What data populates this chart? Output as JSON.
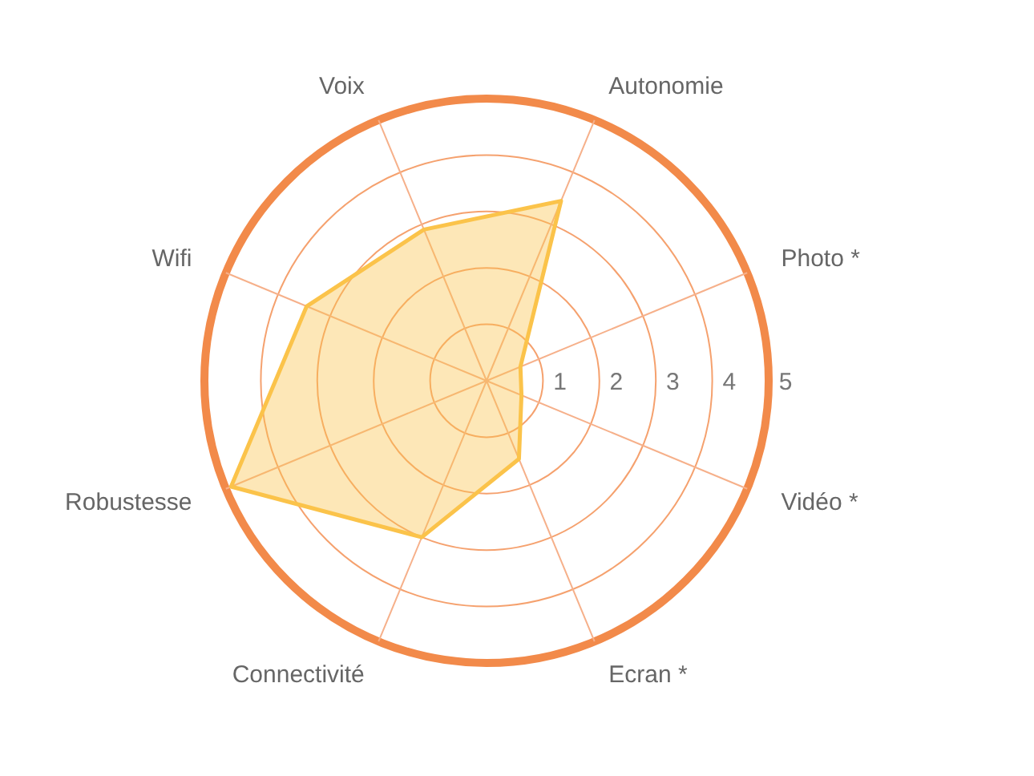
{
  "chart_data": {
    "type": "radar",
    "categories": [
      "Autonomie",
      "Photo *",
      "Vidéo *",
      "Ecran *",
      "Connectivité",
      "Robustesse",
      "Wifi",
      "Voix"
    ],
    "series": [
      {
        "color": "#fbc34a",
        "values": [
          3.45,
          0.65,
          0.67,
          1.5,
          3.0,
          4.9,
          3.45,
          2.9
        ]
      }
    ],
    "ylim": [
      0,
      5
    ],
    "yticks": [
      1,
      2,
      3,
      4,
      5
    ],
    "grid": true
  }
}
